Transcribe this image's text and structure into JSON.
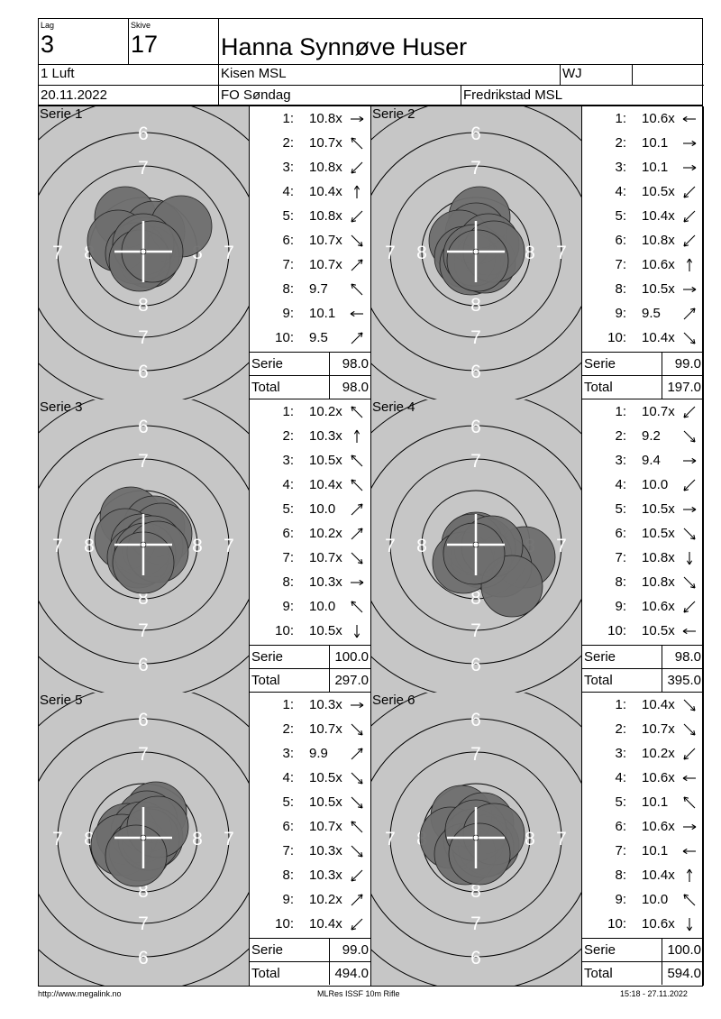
{
  "header": {
    "lag_label": "Lag",
    "lag_value": "3",
    "skive_label": "Skive",
    "skive_value": "17",
    "shooter_name": "Hanna Synnøve Huser",
    "class": "1 Luft",
    "club": "Kisen MSL",
    "weapon_code": "WJ",
    "date": "20.11.2022",
    "event": "FO Søndag",
    "organizer": "Fredrikstad MSL"
  },
  "labels": {
    "serie": "Serie",
    "total": "Total"
  },
  "ring_numbers": {
    "six": "6",
    "seven": "7",
    "eight": "8"
  },
  "series": [
    {
      "title": "Serie 1",
      "serie_total": "98.0",
      "running_total": "98.0",
      "shots": [
        {
          "n": "1:",
          "v": "10.8x",
          "dir": "E"
        },
        {
          "n": "2:",
          "v": "10.7x",
          "dir": "NW"
        },
        {
          "n": "3:",
          "v": "10.8x",
          "dir": "SW"
        },
        {
          "n": "4:",
          "v": "10.4x",
          "dir": "N"
        },
        {
          "n": "5:",
          "v": "10.8x",
          "dir": "SW"
        },
        {
          "n": "6:",
          "v": "10.7x",
          "dir": "SE"
        },
        {
          "n": "7:",
          "v": "10.7x",
          "dir": "NE"
        },
        {
          "n": "8:",
          "v": "9.7",
          "dir": "NW"
        },
        {
          "n": "9:",
          "v": "10.1",
          "dir": "W"
        },
        {
          "n": "10:",
          "v": "9.5",
          "dir": "NE"
        }
      ]
    },
    {
      "title": "Serie 2",
      "serie_total": "99.0",
      "running_total": "197.0",
      "shots": [
        {
          "n": "1:",
          "v": "10.6x",
          "dir": "W"
        },
        {
          "n": "2:",
          "v": "10.1",
          "dir": "E"
        },
        {
          "n": "3:",
          "v": "10.1",
          "dir": "E"
        },
        {
          "n": "4:",
          "v": "10.5x",
          "dir": "SW"
        },
        {
          "n": "5:",
          "v": "10.4x",
          "dir": "SW"
        },
        {
          "n": "6:",
          "v": "10.8x",
          "dir": "SW"
        },
        {
          "n": "7:",
          "v": "10.6x",
          "dir": "N"
        },
        {
          "n": "8:",
          "v": "10.5x",
          "dir": "E"
        },
        {
          "n": "9:",
          "v": "9.5",
          "dir": "NE"
        },
        {
          "n": "10:",
          "v": "10.4x",
          "dir": "SE"
        }
      ]
    },
    {
      "title": "Serie 3",
      "serie_total": "100.0",
      "running_total": "297.0",
      "shots": [
        {
          "n": "1:",
          "v": "10.2x",
          "dir": "NW"
        },
        {
          "n": "2:",
          "v": "10.3x",
          "dir": "N"
        },
        {
          "n": "3:",
          "v": "10.5x",
          "dir": "NW"
        },
        {
          "n": "4:",
          "v": "10.4x",
          "dir": "NW"
        },
        {
          "n": "5:",
          "v": "10.0",
          "dir": "NE"
        },
        {
          "n": "6:",
          "v": "10.2x",
          "dir": "NE"
        },
        {
          "n": "7:",
          "v": "10.7x",
          "dir": "SE"
        },
        {
          "n": "8:",
          "v": "10.3x",
          "dir": "E"
        },
        {
          "n": "9:",
          "v": "10.0",
          "dir": "NW"
        },
        {
          "n": "10:",
          "v": "10.5x",
          "dir": "S"
        }
      ]
    },
    {
      "title": "Serie 4",
      "serie_total": "98.0",
      "running_total": "395.0",
      "shots": [
        {
          "n": "1:",
          "v": "10.7x",
          "dir": "SW"
        },
        {
          "n": "2:",
          "v": "9.2",
          "dir": "SE"
        },
        {
          "n": "3:",
          "v": "9.4",
          "dir": "E"
        },
        {
          "n": "4:",
          "v": "10.0",
          "dir": "SW"
        },
        {
          "n": "5:",
          "v": "10.5x",
          "dir": "E"
        },
        {
          "n": "6:",
          "v": "10.5x",
          "dir": "SE"
        },
        {
          "n": "7:",
          "v": "10.8x",
          "dir": "S"
        },
        {
          "n": "8:",
          "v": "10.8x",
          "dir": "SE"
        },
        {
          "n": "9:",
          "v": "10.6x",
          "dir": "SW"
        },
        {
          "n": "10:",
          "v": "10.5x",
          "dir": "W"
        }
      ]
    },
    {
      "title": "Serie 5",
      "serie_total": "99.0",
      "running_total": "494.0",
      "shots": [
        {
          "n": "1:",
          "v": "10.3x",
          "dir": "E"
        },
        {
          "n": "2:",
          "v": "10.7x",
          "dir": "SE"
        },
        {
          "n": "3:",
          "v": "9.9",
          "dir": "NE"
        },
        {
          "n": "4:",
          "v": "10.5x",
          "dir": "SE"
        },
        {
          "n": "5:",
          "v": "10.5x",
          "dir": "SE"
        },
        {
          "n": "6:",
          "v": "10.7x",
          "dir": "NW"
        },
        {
          "n": "7:",
          "v": "10.3x",
          "dir": "SE"
        },
        {
          "n": "8:",
          "v": "10.3x",
          "dir": "SW"
        },
        {
          "n": "9:",
          "v": "10.2x",
          "dir": "NE"
        },
        {
          "n": "10:",
          "v": "10.4x",
          "dir": "SW"
        }
      ]
    },
    {
      "title": "Serie 6",
      "serie_total": "100.0",
      "running_total": "594.0",
      "shots": [
        {
          "n": "1:",
          "v": "10.4x",
          "dir": "SE"
        },
        {
          "n": "2:",
          "v": "10.7x",
          "dir": "SE"
        },
        {
          "n": "3:",
          "v": "10.2x",
          "dir": "SW"
        },
        {
          "n": "4:",
          "v": "10.6x",
          "dir": "W"
        },
        {
          "n": "5:",
          "v": "10.1",
          "dir": "NW"
        },
        {
          "n": "6:",
          "v": "10.6x",
          "dir": "E"
        },
        {
          "n": "7:",
          "v": "10.1",
          "dir": "W"
        },
        {
          "n": "8:",
          "v": "10.4x",
          "dir": "N"
        },
        {
          "n": "9:",
          "v": "10.0",
          "dir": "NW"
        },
        {
          "n": "10:",
          "v": "10.6x",
          "dir": "S"
        }
      ]
    }
  ],
  "footer": {
    "url": "http://www.megalink.no",
    "software": "MLRes ISSF 10m Rifle",
    "printed": "15:18 - 27.11.2022"
  },
  "colors": {
    "target_face": "#c6c6c6",
    "hole_fill": "#6e6e6e",
    "ring_line": "#000000"
  }
}
